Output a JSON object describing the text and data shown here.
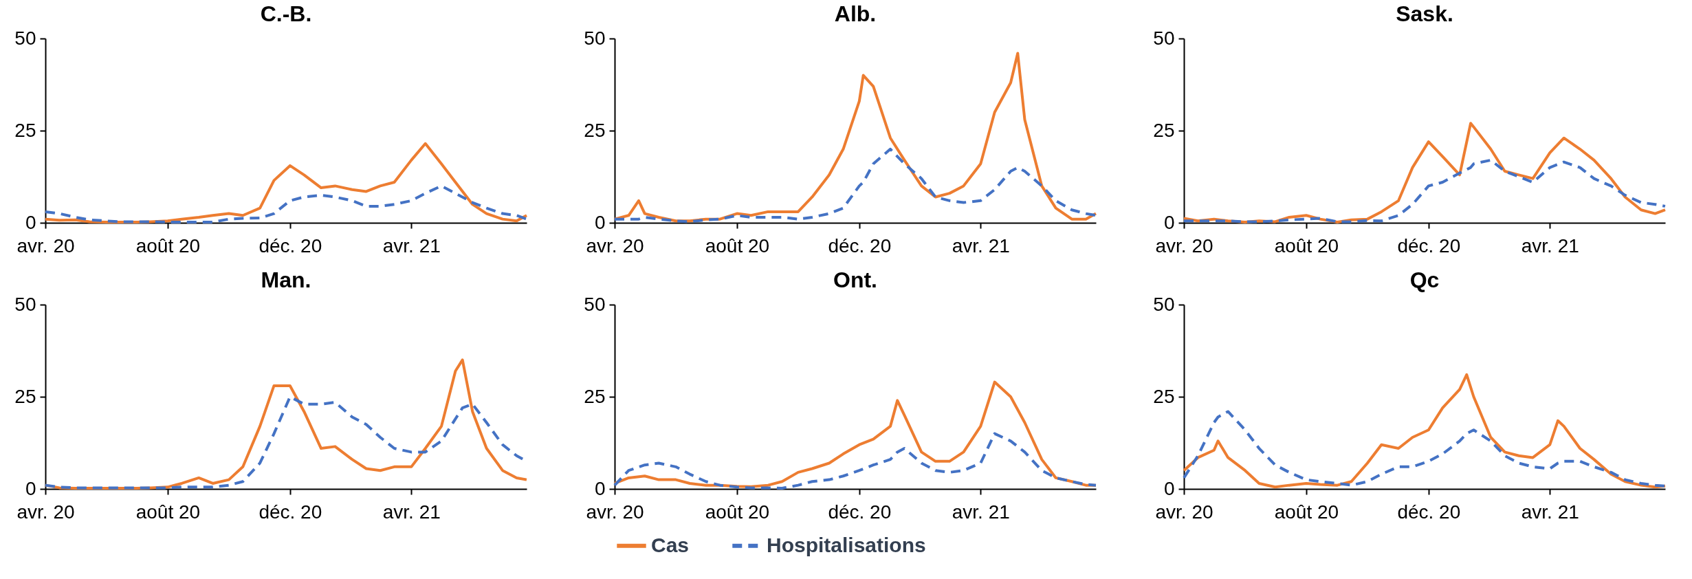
{
  "chart_data": [
    {
      "type": "line",
      "title": "C.-B.",
      "x": [
        "2020-04-01",
        "2020-04-15",
        "2020-05-01",
        "2020-05-15",
        "2020-06-01",
        "2020-06-15",
        "2020-07-01",
        "2020-07-15",
        "2020-08-01",
        "2020-08-15",
        "2020-09-01",
        "2020-09-15",
        "2020-10-01",
        "2020-10-15",
        "2020-11-01",
        "2020-11-15",
        "2020-12-01",
        "2020-12-15",
        "2021-01-01",
        "2021-01-15",
        "2021-02-01",
        "2021-02-15",
        "2021-03-01",
        "2021-03-15",
        "2021-04-01",
        "2021-04-15",
        "2021-05-01",
        "2021-05-15",
        "2021-06-01",
        "2021-06-15",
        "2021-07-01",
        "2021-07-15",
        "2021-07-25"
      ],
      "xlim": [
        "2020-04-01",
        "2021-07-25"
      ],
      "xticks": [
        {
          "value": "2020-04-01",
          "label": "avr. 20"
        },
        {
          "value": "2020-08-01",
          "label": "août 20"
        },
        {
          "value": "2020-12-01",
          "label": "déc. 20"
        },
        {
          "value": "2021-04-01",
          "label": "avr. 21"
        }
      ],
      "ylim": [
        0,
        50
      ],
      "yticks": [
        0,
        25,
        50
      ],
      "series": [
        {
          "color": "#ed7d31",
          "line_style": "solid",
          "values": [
            1,
            0.7,
            0.8,
            0.3,
            0.2,
            0.2,
            0.2,
            0.3,
            0.5,
            1,
            1.5,
            2,
            2.5,
            2,
            4,
            11.5,
            15.5,
            13,
            9.5,
            10,
            9,
            8.5,
            10,
            11,
            17,
            21.5,
            16,
            11,
            5,
            2.5,
            1,
            0.5,
            2
          ]
        },
        {
          "color": "#4472c4",
          "line_style": "dashed",
          "values": [
            3,
            2.5,
            1.5,
            0.8,
            0.5,
            0.3,
            0.3,
            0.3,
            0.2,
            0.2,
            0.2,
            0.2,
            1,
            1.2,
            1.3,
            2.5,
            6,
            7,
            7.5,
            7,
            6,
            4.5,
            4.5,
            5,
            6,
            8,
            10,
            8,
            5.5,
            4,
            2.5,
            2,
            1
          ]
        }
      ]
    },
    {
      "type": "line",
      "title": "Alb.",
      "x": [
        "2020-04-01",
        "2020-04-15",
        "2020-04-25",
        "2020-05-01",
        "2020-05-15",
        "2020-06-01",
        "2020-06-15",
        "2020-07-01",
        "2020-07-15",
        "2020-08-01",
        "2020-08-15",
        "2020-09-01",
        "2020-09-15",
        "2020-10-01",
        "2020-10-15",
        "2020-11-01",
        "2020-11-15",
        "2020-12-01",
        "2020-12-05",
        "2020-12-15",
        "2021-01-01",
        "2021-01-15",
        "2021-02-01",
        "2021-02-15",
        "2021-03-01",
        "2021-03-15",
        "2021-04-01",
        "2021-04-15",
        "2021-05-01",
        "2021-05-08",
        "2021-05-15",
        "2021-06-01",
        "2021-06-15",
        "2021-07-01",
        "2021-07-15",
        "2021-07-25"
      ],
      "xlim": [
        "2020-04-01",
        "2021-07-25"
      ],
      "xticks": [
        {
          "value": "2020-04-01",
          "label": "avr. 20"
        },
        {
          "value": "2020-08-01",
          "label": "août 20"
        },
        {
          "value": "2020-12-01",
          "label": "déc. 20"
        },
        {
          "value": "2021-04-01",
          "label": "avr. 21"
        }
      ],
      "ylim": [
        0,
        50
      ],
      "yticks": [
        0,
        25,
        50
      ],
      "series": [
        {
          "color": "#ed7d31",
          "line_style": "solid",
          "values": [
            1,
            2,
            6,
            2.5,
            1.5,
            0.5,
            0.5,
            1,
            1,
            2.5,
            2,
            3,
            3,
            3,
            7,
            13,
            20,
            33,
            40,
            37,
            23,
            17,
            10,
            7,
            8,
            10,
            16,
            30,
            38,
            46,
            28,
            10,
            4,
            1,
            1,
            2.5
          ]
        },
        {
          "color": "#4472c4",
          "line_style": "dashed",
          "values": [
            1,
            1,
            1,
            1.5,
            1,
            0.5,
            0.3,
            0.8,
            1,
            2,
            1.5,
            1.5,
            1.5,
            1,
            1.5,
            2.5,
            4,
            10,
            11,
            16,
            20,
            16,
            12,
            7,
            6,
            5.5,
            6,
            9,
            14,
            15,
            14,
            10,
            6,
            3.5,
            2.5,
            2
          ]
        }
      ]
    },
    {
      "type": "line",
      "title": "Sask.",
      "x": [
        "2020-04-01",
        "2020-04-15",
        "2020-05-01",
        "2020-05-15",
        "2020-06-01",
        "2020-06-15",
        "2020-07-01",
        "2020-07-15",
        "2020-08-01",
        "2020-08-15",
        "2020-09-01",
        "2020-09-15",
        "2020-10-01",
        "2020-10-15",
        "2020-11-01",
        "2020-11-15",
        "2020-12-01",
        "2020-12-15",
        "2021-01-01",
        "2021-01-12",
        "2021-01-15",
        "2021-02-01",
        "2021-02-15",
        "2021-03-01",
        "2021-03-15",
        "2021-04-01",
        "2021-04-15",
        "2021-05-01",
        "2021-05-15",
        "2021-06-01",
        "2021-06-15",
        "2021-07-01",
        "2021-07-15",
        "2021-07-25"
      ],
      "xlim": [
        "2020-04-01",
        "2021-07-25"
      ],
      "xticks": [
        {
          "value": "2020-04-01",
          "label": "avr. 20"
        },
        {
          "value": "2020-08-01",
          "label": "août 20"
        },
        {
          "value": "2020-12-01",
          "label": "déc. 20"
        },
        {
          "value": "2021-04-01",
          "label": "avr. 21"
        }
      ],
      "ylim": [
        0,
        50
      ],
      "yticks": [
        0,
        25,
        50
      ],
      "series": [
        {
          "color": "#ed7d31",
          "line_style": "solid",
          "values": [
            1.2,
            0.5,
            1,
            0.5,
            0.2,
            0.5,
            0.3,
            1.5,
            2,
            1,
            0.2,
            0.8,
            1,
            3,
            6,
            15,
            22,
            18,
            13,
            27,
            26,
            20,
            14,
            13,
            12,
            19,
            23,
            20,
            17,
            12,
            7,
            3.5,
            2.5,
            3.5
          ]
        },
        {
          "color": "#4472c4",
          "line_style": "dashed",
          "values": [
            0.5,
            0.5,
            0.5,
            0.5,
            0.3,
            0.3,
            0.5,
            0.8,
            1,
            1.2,
            0.3,
            0.3,
            0.6,
            0.5,
            2,
            5,
            10,
            11,
            13.5,
            15,
            16,
            17,
            14,
            12.5,
            11,
            15,
            16.5,
            15,
            12,
            10,
            7.5,
            5.5,
            5,
            4.5
          ]
        }
      ]
    },
    {
      "type": "line",
      "title": "Man.",
      "x": [
        "2020-04-01",
        "2020-04-15",
        "2020-05-01",
        "2020-05-15",
        "2020-06-01",
        "2020-06-15",
        "2020-07-01",
        "2020-07-15",
        "2020-08-01",
        "2020-08-15",
        "2020-09-01",
        "2020-09-15",
        "2020-10-01",
        "2020-10-15",
        "2020-11-01",
        "2020-11-15",
        "2020-12-01",
        "2020-12-15",
        "2021-01-01",
        "2021-01-15",
        "2021-02-01",
        "2021-02-15",
        "2021-03-01",
        "2021-03-15",
        "2021-04-01",
        "2021-04-15",
        "2021-05-01",
        "2021-05-15",
        "2021-05-22",
        "2021-06-01",
        "2021-06-15",
        "2021-07-01",
        "2021-07-15",
        "2021-07-25"
      ],
      "xlim": [
        "2020-04-01",
        "2021-07-25"
      ],
      "xticks": [
        {
          "value": "2020-04-01",
          "label": "avr. 20"
        },
        {
          "value": "2020-08-01",
          "label": "août 20"
        },
        {
          "value": "2020-12-01",
          "label": "déc. 20"
        },
        {
          "value": "2021-04-01",
          "label": "avr. 21"
        }
      ],
      "ylim": [
        0,
        50
      ],
      "yticks": [
        0,
        25,
        50
      ],
      "series": [
        {
          "color": "#ed7d31",
          "line_style": "solid",
          "values": [
            1,
            0.3,
            0.2,
            0.2,
            0.2,
            0.2,
            0.2,
            0.3,
            0.5,
            1.5,
            3,
            1.5,
            2.5,
            6,
            17,
            28,
            28,
            21,
            11,
            11.5,
            8,
            5.5,
            5,
            6,
            6,
            11,
            17,
            32,
            35,
            21,
            11,
            5,
            3,
            2.5
          ]
        },
        {
          "color": "#4472c4",
          "line_style": "dashed",
          "values": [
            1,
            0.5,
            0.3,
            0.3,
            0.3,
            0.3,
            0.3,
            0.3,
            0.3,
            0.5,
            0.5,
            0.5,
            1,
            2,
            7,
            15,
            25,
            23,
            23,
            23.5,
            19.5,
            17.5,
            14,
            11,
            10,
            10,
            13,
            19,
            22,
            23,
            18,
            12,
            9,
            7.5
          ]
        }
      ]
    },
    {
      "type": "line",
      "title": "Ont.",
      "legend": "bottom",
      "x": [
        "2020-04-01",
        "2020-04-15",
        "2020-05-01",
        "2020-05-15",
        "2020-06-01",
        "2020-06-15",
        "2020-07-01",
        "2020-07-15",
        "2020-08-01",
        "2020-08-15",
        "2020-09-01",
        "2020-09-15",
        "2020-10-01",
        "2020-10-15",
        "2020-11-01",
        "2020-11-15",
        "2020-12-01",
        "2020-12-15",
        "2021-01-01",
        "2021-01-08",
        "2021-01-15",
        "2021-02-01",
        "2021-02-15",
        "2021-03-01",
        "2021-03-15",
        "2021-04-01",
        "2021-04-15",
        "2021-05-01",
        "2021-05-15",
        "2021-06-01",
        "2021-06-15",
        "2021-07-01",
        "2021-07-15",
        "2021-07-25"
      ],
      "xlim": [
        "2020-04-01",
        "2021-07-25"
      ],
      "xticks": [
        {
          "value": "2020-04-01",
          "label": "avr. 20"
        },
        {
          "value": "2020-08-01",
          "label": "août 20"
        },
        {
          "value": "2020-12-01",
          "label": "déc. 20"
        },
        {
          "value": "2021-04-01",
          "label": "avr. 21"
        }
      ],
      "ylim": [
        0,
        50
      ],
      "yticks": [
        0,
        25,
        50
      ],
      "series": [
        {
          "name": "Cas",
          "color": "#ed7d31",
          "line_style": "solid",
          "values": [
            1.5,
            3,
            3.5,
            2.5,
            2.5,
            1.5,
            1,
            1,
            0.7,
            0.6,
            1,
            2,
            4.5,
            5.5,
            7,
            9.5,
            12,
            13.5,
            17,
            24,
            20,
            10,
            7.5,
            7.5,
            10,
            17,
            29,
            25,
            18,
            8,
            3,
            2,
            1,
            1
          ]
        },
        {
          "name": "Hospitalisations",
          "color": "#4472c4",
          "line_style": "dashed",
          "values": [
            1,
            5,
            6.5,
            7,
            6,
            4,
            2,
            1,
            0.5,
            0.3,
            0.3,
            0.2,
            1,
            2,
            2.5,
            3.5,
            5,
            6.5,
            8,
            10,
            11,
            7,
            5,
            4.5,
            5,
            7,
            15,
            13,
            10,
            5,
            3,
            2,
            1.2,
            1
          ]
        }
      ]
    },
    {
      "type": "line",
      "title": "Qc",
      "x": [
        "2020-04-01",
        "2020-04-15",
        "2020-05-01",
        "2020-05-05",
        "2020-05-15",
        "2020-06-01",
        "2020-06-15",
        "2020-07-01",
        "2020-07-15",
        "2020-08-01",
        "2020-08-15",
        "2020-09-01",
        "2020-09-15",
        "2020-10-01",
        "2020-10-15",
        "2020-11-01",
        "2020-11-15",
        "2020-12-01",
        "2020-12-15",
        "2021-01-01",
        "2021-01-08",
        "2021-01-15",
        "2021-02-01",
        "2021-02-15",
        "2021-03-01",
        "2021-03-15",
        "2021-04-01",
        "2021-04-09",
        "2021-04-15",
        "2021-05-01",
        "2021-05-15",
        "2021-06-01",
        "2021-06-15",
        "2021-07-01",
        "2021-07-15",
        "2021-07-25"
      ],
      "xlim": [
        "2020-04-01",
        "2021-07-25"
      ],
      "xticks": [
        {
          "value": "2020-04-01",
          "label": "avr. 20"
        },
        {
          "value": "2020-08-01",
          "label": "août 20"
        },
        {
          "value": "2020-12-01",
          "label": "déc. 20"
        },
        {
          "value": "2021-04-01",
          "label": "avr. 21"
        }
      ],
      "ylim": [
        0,
        50
      ],
      "yticks": [
        0,
        25,
        50
      ],
      "series": [
        {
          "color": "#ed7d31",
          "line_style": "solid",
          "values": [
            5,
            8.5,
            10.5,
            13,
            8.5,
            5,
            1.5,
            0.5,
            1,
            1.5,
            1.2,
            1,
            2,
            7,
            12,
            11,
            14,
            16,
            22,
            27,
            31,
            25,
            14,
            10,
            9,
            8.5,
            12,
            18.5,
            17,
            11,
            8,
            4,
            2,
            1,
            0.5,
            0.8
          ]
        },
        {
          "color": "#4472c4",
          "line_style": "dashed",
          "values": [
            3,
            9,
            18,
            19.5,
            21,
            16,
            11,
            6.5,
            4.5,
            2.5,
            2,
            1.5,
            1,
            2,
            4,
            6,
            6,
            7.5,
            9.5,
            13,
            15,
            16,
            13,
            9,
            7,
            6,
            5.5,
            7,
            7.5,
            7.5,
            6,
            4.5,
            2.5,
            1.5,
            1,
            0.8
          ]
        }
      ]
    }
  ]
}
